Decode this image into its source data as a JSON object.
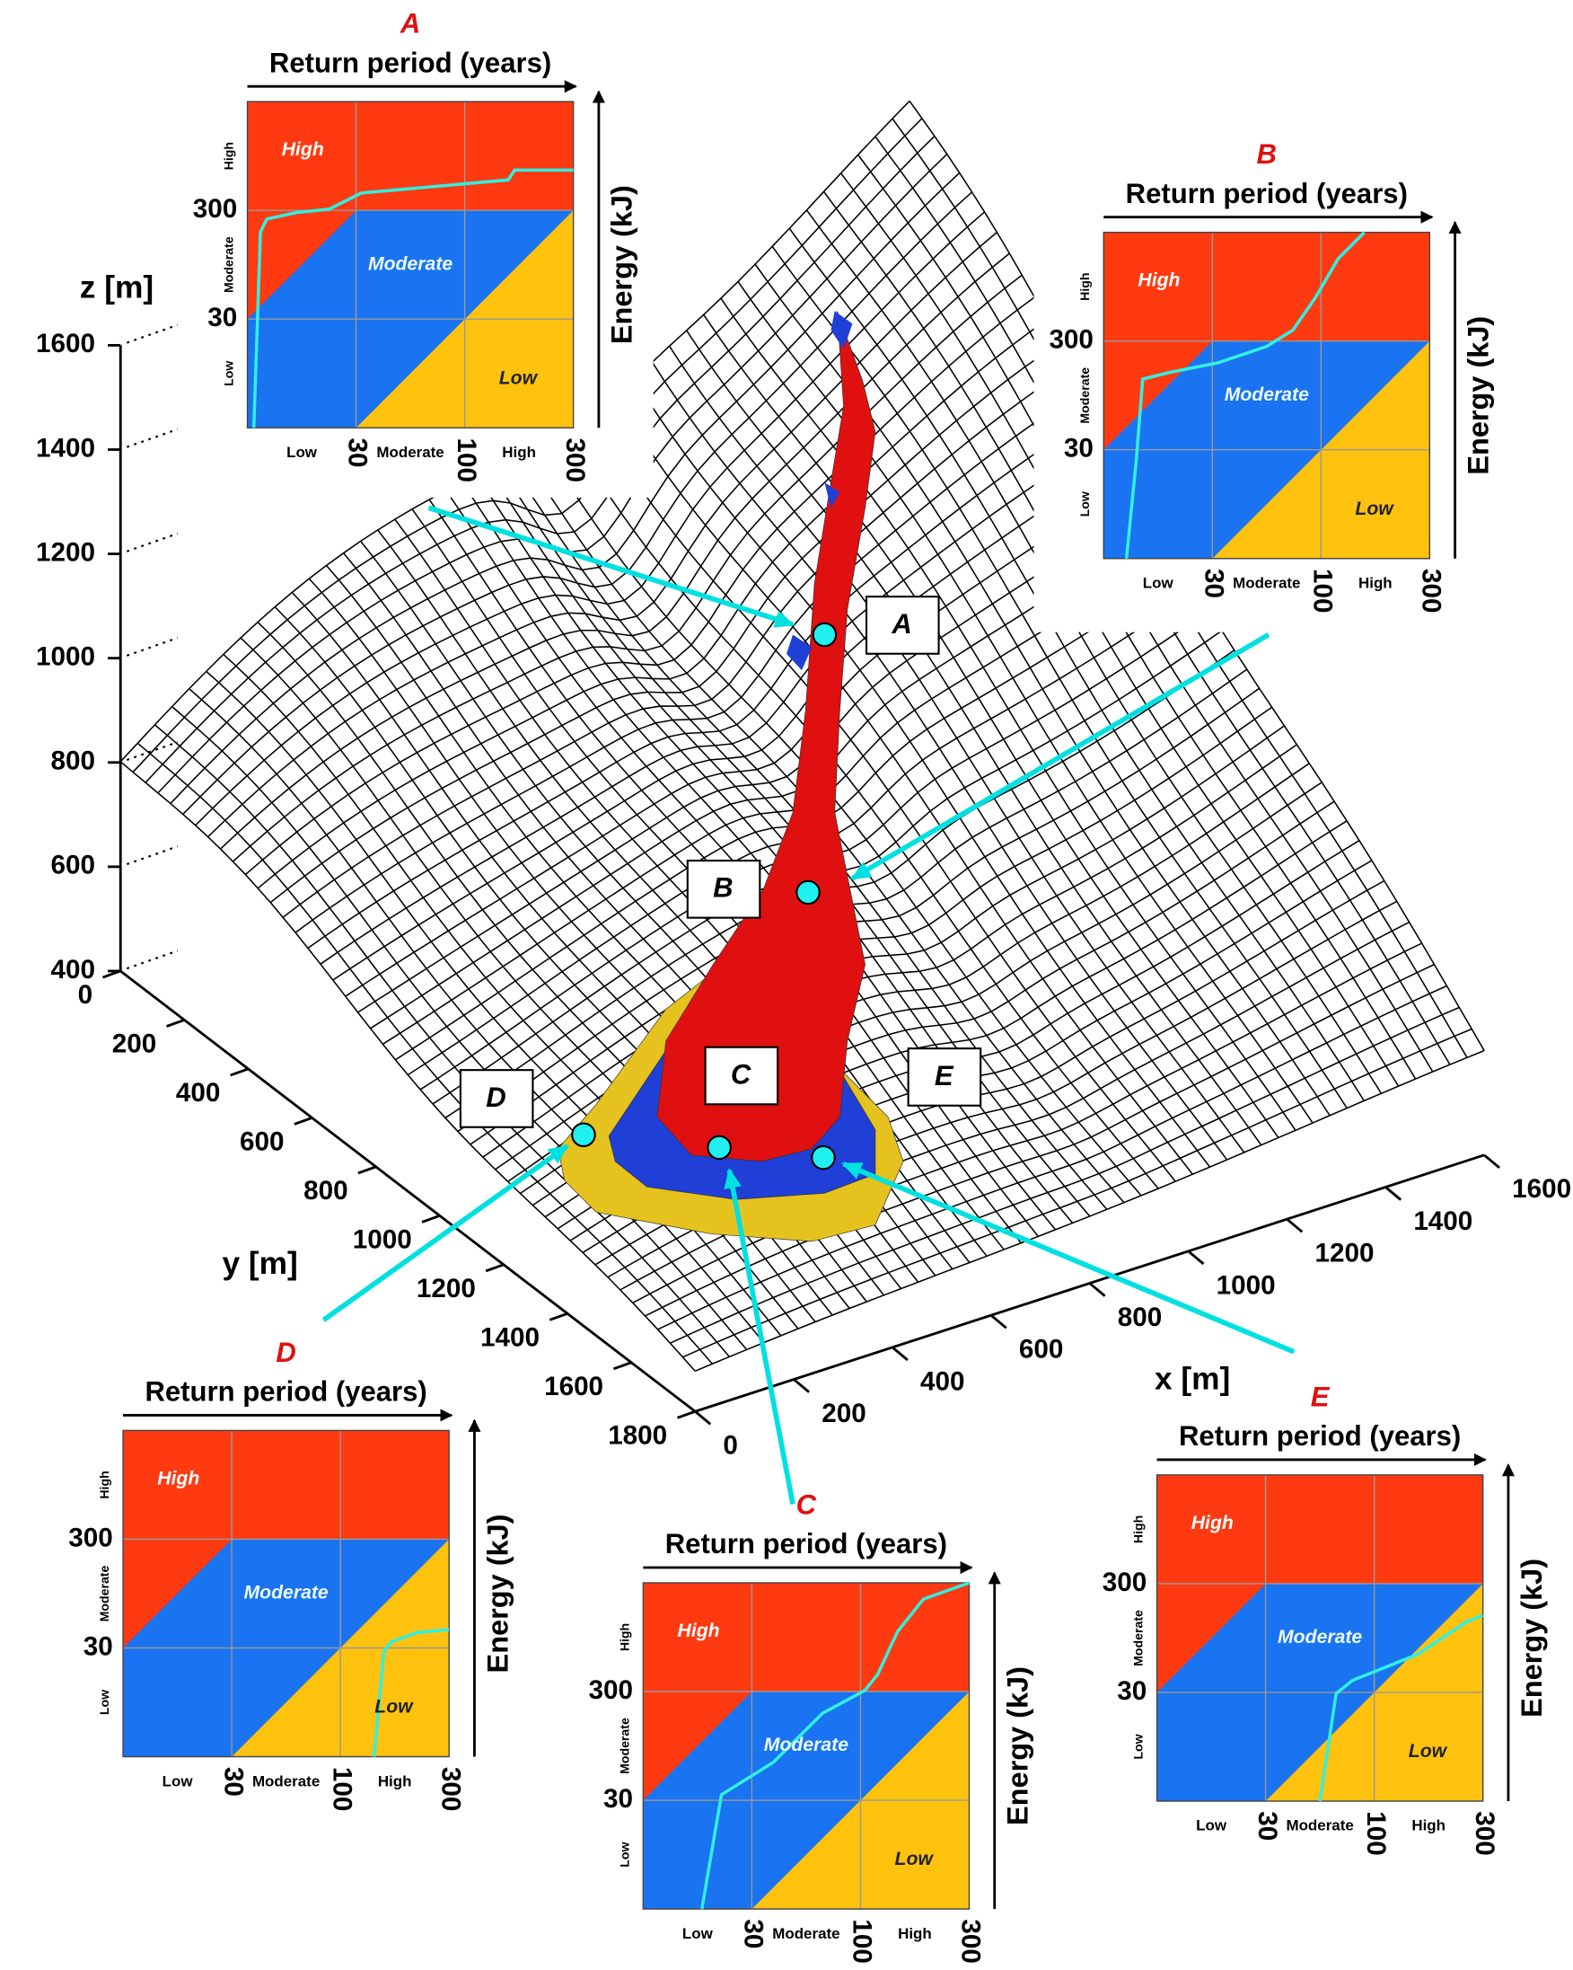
{
  "axes": {
    "z": {
      "label": "z [m]",
      "ticks": [
        1600,
        1400,
        1200,
        1000,
        800,
        600,
        400
      ]
    },
    "y": {
      "label": "y [m]",
      "ticks": [
        0,
        200,
        400,
        600,
        800,
        1000,
        1200,
        1400,
        1600,
        1800
      ]
    },
    "x": {
      "label": "x [m]",
      "ticks": [
        0,
        200,
        400,
        600,
        800,
        1000,
        1200,
        1400,
        1600
      ]
    }
  },
  "site_labels": [
    "A",
    "B",
    "C",
    "D",
    "E"
  ],
  "insets": [
    {
      "letter": "A",
      "title": "Return period (years)",
      "y_title": "Energy (kJ)",
      "zones": [
        "High",
        "Moderate",
        "Low"
      ],
      "x_ticks": [
        "Low",
        30,
        "Moderate",
        100,
        "High",
        300
      ],
      "y_ticks": [
        "High",
        300,
        "Moderate",
        30,
        "Low"
      ]
    },
    {
      "letter": "B",
      "title": "Return period (years)",
      "y_title": "Energy (kJ)",
      "zones": [
        "High",
        "Moderate",
        "Low"
      ],
      "x_ticks": [
        "Low",
        30,
        "Moderate",
        100,
        "High",
        300
      ],
      "y_ticks": [
        "High",
        300,
        "Moderate",
        30,
        "Low"
      ]
    },
    {
      "letter": "C",
      "title": "Return period (years)",
      "y_title": "Energy (kJ)",
      "zones": [
        "High",
        "Moderate",
        "Low"
      ],
      "x_ticks": [
        "Low",
        30,
        "Moderate",
        100,
        "High",
        300
      ],
      "y_ticks": [
        "High",
        300,
        "Moderate",
        30,
        "Low"
      ]
    },
    {
      "letter": "D",
      "title": "Return period (years)",
      "y_title": "Energy (kJ)",
      "zones": [
        "High",
        "Moderate",
        "Low"
      ],
      "x_ticks": [
        "Low",
        30,
        "Moderate",
        100,
        "High",
        300
      ],
      "y_ticks": [
        "High",
        300,
        "Moderate",
        30,
        "Low"
      ]
    },
    {
      "letter": "E",
      "title": "Return period (years)",
      "y_title": "Energy (kJ)",
      "zones": [
        "High",
        "Moderate",
        "Low"
      ],
      "x_ticks": [
        "Low",
        30,
        "Moderate",
        100,
        "High",
        300
      ],
      "y_ticks": [
        "High",
        300,
        "Moderate",
        30,
        "Low"
      ]
    }
  ]
}
